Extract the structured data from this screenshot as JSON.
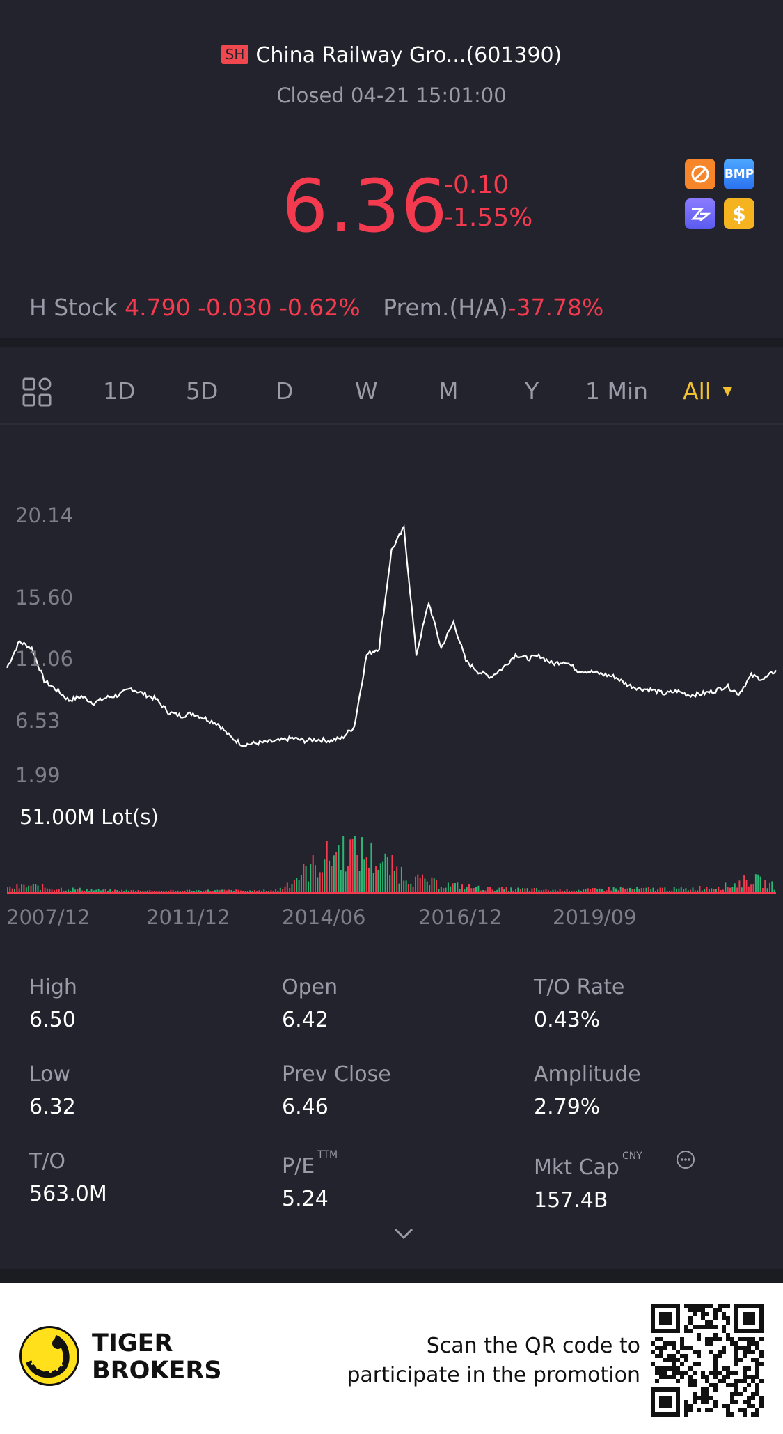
{
  "header": {
    "exchange_badge": "SH",
    "title": "China Railway Gro...(601390)",
    "status": "Closed 04-21 15:01:00",
    "price": "6.36",
    "change_abs": "-0.10",
    "change_pct": "-1.55%",
    "badge_icons": [
      "no-short-icon",
      "bmp-icon",
      "zz-icon",
      "dollar-icon"
    ],
    "bmp_text": "BMP",
    "dollar_text": "$"
  },
  "h_stock": {
    "label": "H Stock",
    "value": "4.790 -0.030 -0.62%",
    "premium_label": "Prem.(H/A)",
    "premium_value": "-37.78%"
  },
  "tabs": {
    "items": [
      "1D",
      "5D",
      "D",
      "W",
      "M",
      "Y",
      "1 Min",
      "All"
    ],
    "active": "All"
  },
  "chart": {
    "y_labels": [
      "20.14",
      "15.60",
      "11.06",
      "6.53",
      "1.99"
    ],
    "volume_label": "51.00M Lot(s)",
    "x_labels": [
      "2007/12",
      "2011/12",
      "2014/06",
      "2016/12",
      "2019/09"
    ]
  },
  "chart_data": {
    "type": "line",
    "title": "",
    "y_ticks": [
      20.14,
      15.6,
      11.06,
      6.53,
      1.99
    ],
    "ylim": [
      1.99,
      20.14
    ],
    "x_ticks": [
      "2007/12",
      "2011/12",
      "2014/06",
      "2016/12",
      "2019/09"
    ],
    "series": [
      {
        "values": [
          9.0,
          11.0,
          10.5,
          8.0,
          7.3,
          6.5,
          6.8,
          6.3,
          6.7,
          6.9,
          7.4,
          7.0,
          6.6,
          5.6,
          5.3,
          5.5,
          5.1,
          4.7,
          3.7,
          3.1,
          3.2,
          3.3,
          3.4,
          3.6,
          3.4,
          3.5,
          3.4,
          3.6,
          4.5,
          10.0,
          10.5,
          18.0,
          19.7,
          10.0,
          14.0,
          10.5,
          12.5,
          9.5,
          8.7,
          8.3,
          9.0,
          10.0,
          9.7,
          9.9,
          9.3,
          9.5,
          8.8,
          8.7,
          8.5,
          8.3,
          7.7,
          7.4,
          7.3,
          7.0,
          7.2,
          6.9,
          7.0,
          7.2,
          7.6,
          7.0,
          8.4,
          8.1,
          8.8
        ]
      }
    ],
    "volume": {
      "max_label": "51.00M Lot(s)",
      "description_levels": [
        0.1,
        0.15,
        0.1,
        0.08,
        0.06,
        0.05,
        0.05,
        0.04,
        0.05,
        0.05,
        0.05,
        0.04,
        0.06,
        0.4,
        0.7,
        1.0,
        0.8,
        0.55,
        0.3,
        0.2,
        0.15,
        0.1,
        0.08,
        0.08,
        0.06,
        0.06,
        0.07,
        0.1,
        0.08,
        0.09,
        0.08,
        0.12,
        0.15,
        0.3,
        0.15
      ]
    },
    "colors": {
      "line": "#ffffff",
      "volume_up": "#2bb673",
      "volume_down": "#f33a4f"
    }
  },
  "stats": {
    "high_label": "High",
    "high": "6.50",
    "open_label": "Open",
    "open": "6.42",
    "turnover_rate_label": "T/O Rate",
    "turnover_rate": "0.43%",
    "low_label": "Low",
    "low": "6.32",
    "prev_close_label": "Prev Close",
    "prev_close": "6.46",
    "amplitude_label": "Amplitude",
    "amplitude": "2.79%",
    "turnover_label": "T/O",
    "turnover": "563.0M",
    "pe_label": "P/E",
    "pe_sup": "TTM",
    "pe": "5.24",
    "mkt_cap_label": "Mkt Cap",
    "mkt_cap_sup": "CNY",
    "mkt_cap": "157.4B"
  },
  "footer": {
    "brand_line1": "TIGER",
    "brand_line2": "BROKERS",
    "promo_line1": "Scan the QR code to",
    "promo_line2": "participate in the promotion"
  },
  "colors": {
    "background": "#22232c",
    "down_red": "#f33a4f",
    "active_tab": "#f3c12d"
  }
}
